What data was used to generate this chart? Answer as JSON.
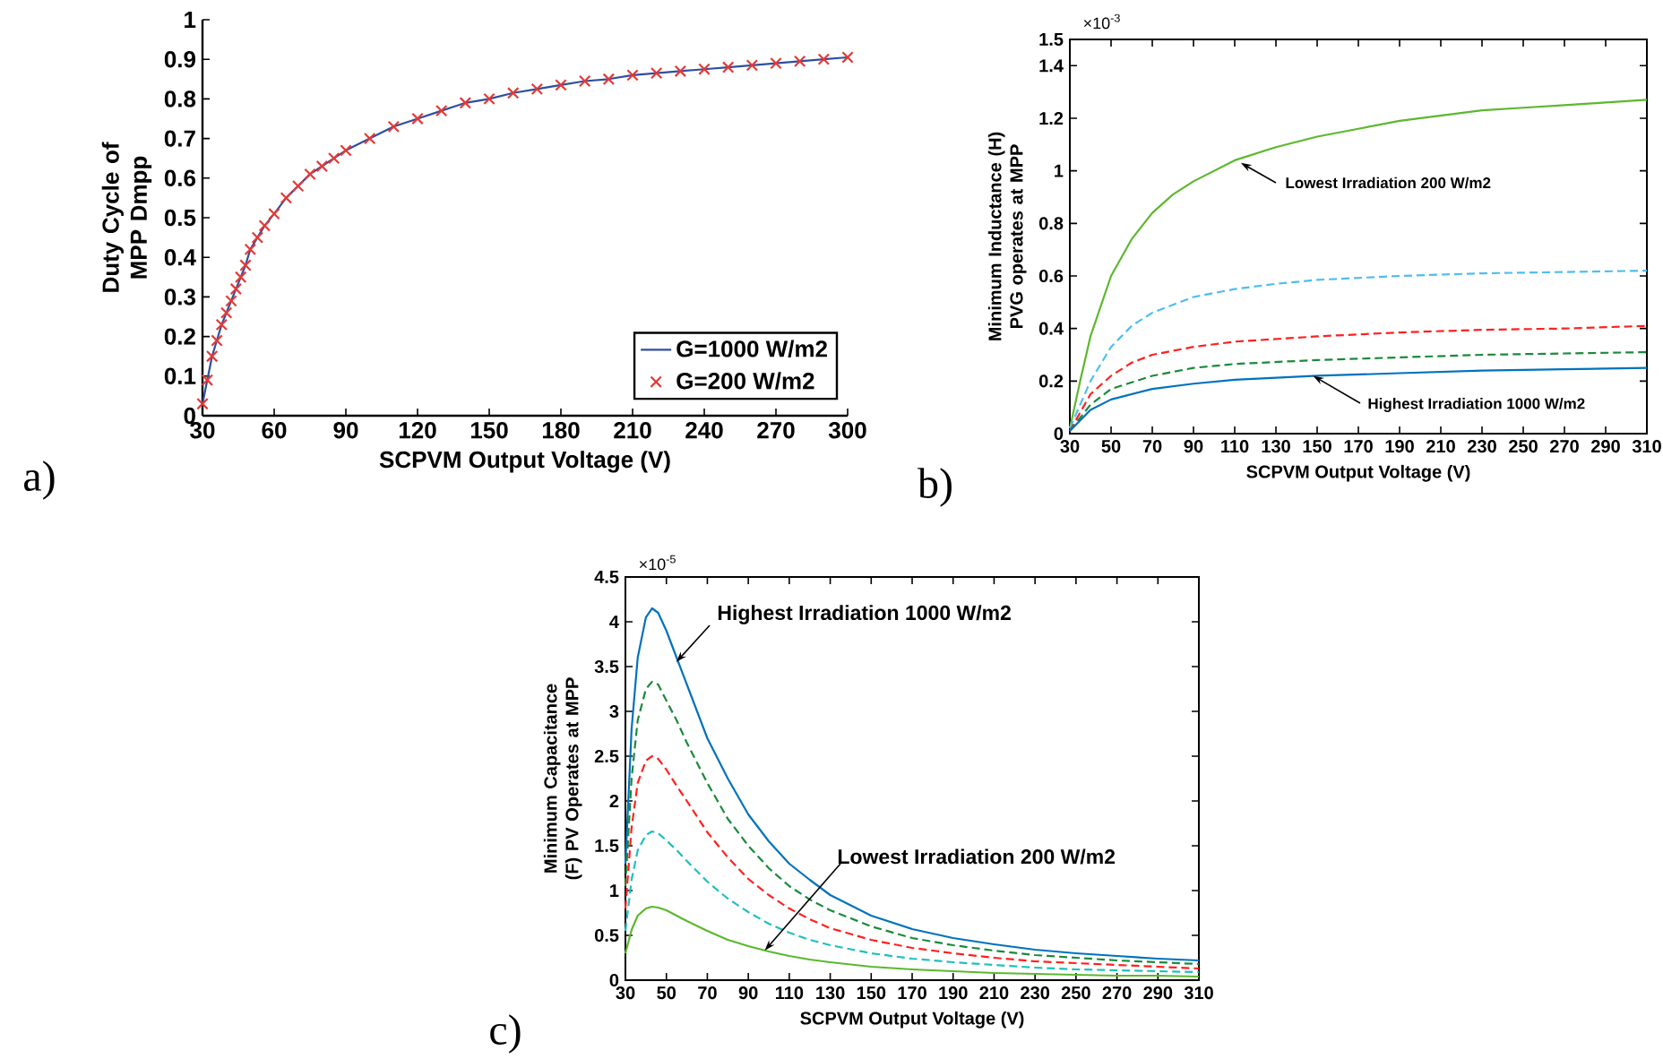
{
  "chart_data": [
    {
      "type": "line",
      "xlabel": "SCPVM Output Voltage (V)",
      "ylabel": "Duty Cycle of MPP Dmpp",
      "x": [
        30,
        32,
        34,
        36,
        38,
        40,
        42,
        44,
        46,
        48,
        50,
        53,
        56,
        60,
        65,
        70,
        75,
        80,
        85,
        90,
        100,
        110,
        120,
        130,
        140,
        150,
        160,
        170,
        180,
        190,
        200,
        210,
        220,
        230,
        240,
        250,
        260,
        270,
        280,
        290,
        300
      ],
      "series": [
        {
          "name": "G=1000 W/m2",
          "color": "#2e4fa0",
          "marker": "none",
          "values": [
            0.03,
            0.09,
            0.15,
            0.19,
            0.23,
            0.26,
            0.29,
            0.32,
            0.35,
            0.38,
            0.42,
            0.45,
            0.48,
            0.51,
            0.55,
            0.58,
            0.61,
            0.63,
            0.65,
            0.67,
            0.7,
            0.73,
            0.75,
            0.77,
            0.79,
            0.8,
            0.815,
            0.825,
            0.835,
            0.845,
            0.85,
            0.86,
            0.865,
            0.87,
            0.875,
            0.88,
            0.885,
            0.89,
            0.895,
            0.9,
            0.905
          ]
        },
        {
          "name": "G=200 W/m2",
          "type": "scatter",
          "color": "#e53935",
          "marker": "cross",
          "values": [
            0.03,
            0.09,
            0.15,
            0.19,
            0.23,
            0.26,
            0.29,
            0.32,
            0.35,
            0.38,
            0.42,
            0.45,
            0.48,
            0.51,
            0.55,
            0.58,
            0.61,
            0.63,
            0.65,
            0.67,
            0.7,
            0.73,
            0.75,
            0.77,
            0.79,
            0.8,
            0.815,
            0.825,
            0.835,
            0.845,
            0.85,
            0.86,
            0.865,
            0.87,
            0.875,
            0.88,
            0.885,
            0.89,
            0.895,
            0.9,
            0.905
          ]
        }
      ],
      "xlim": [
        30,
        300
      ],
      "xticks": [
        30,
        60,
        90,
        120,
        150,
        180,
        210,
        240,
        270,
        300
      ],
      "ylim": [
        0,
        1
      ],
      "yticks": [
        0,
        0.1,
        0.2,
        0.3,
        0.4,
        0.5,
        0.6,
        0.7,
        0.8,
        0.9,
        1
      ],
      "legend": "bottom right",
      "grid": false,
      "annotations": [
        "a)"
      ]
    },
    {
      "type": "line",
      "xlabel": "SCPVM Output Voltage (V)",
      "ylabel": "Minimum Inductance (H) PVG operates at MPP",
      "series": [
        {
          "color": "#5cb82e",
          "line_style": "solid",
          "x": [
            30,
            35,
            40,
            50,
            60,
            70,
            80,
            90,
            100,
            110,
            130,
            150,
            170,
            190,
            210,
            230,
            250,
            270,
            290,
            310
          ],
          "values": [
            0.02,
            0.2,
            0.37,
            0.6,
            0.74,
            0.84,
            0.91,
            0.96,
            1.0,
            1.04,
            1.09,
            1.13,
            1.16,
            1.19,
            1.21,
            1.23,
            1.24,
            1.25,
            1.26,
            1.27
          ]
        },
        {
          "color": "#4dbeee",
          "line_style": "dashed",
          "x": [
            30,
            40,
            50,
            60,
            70,
            90,
            110,
            130,
            150,
            190,
            230,
            270,
            310
          ],
          "values": [
            0.02,
            0.2,
            0.33,
            0.41,
            0.46,
            0.52,
            0.55,
            0.57,
            0.585,
            0.6,
            0.61,
            0.615,
            0.62
          ]
        },
        {
          "color": "#ff2020",
          "line_style": "dashed",
          "x": [
            30,
            40,
            50,
            60,
            70,
            90,
            110,
            150,
            190,
            230,
            270,
            310
          ],
          "values": [
            0.01,
            0.15,
            0.22,
            0.27,
            0.3,
            0.33,
            0.35,
            0.37,
            0.385,
            0.395,
            0.4,
            0.41
          ]
        },
        {
          "color": "#1a8a3a",
          "line_style": "dashed",
          "x": [
            30,
            40,
            50,
            70,
            90,
            110,
            150,
            190,
            230,
            270,
            310
          ],
          "values": [
            0.01,
            0.11,
            0.17,
            0.22,
            0.25,
            0.265,
            0.28,
            0.29,
            0.3,
            0.305,
            0.31
          ]
        },
        {
          "color": "#0072bd",
          "line_style": "solid",
          "x": [
            30,
            40,
            50,
            70,
            90,
            110,
            150,
            190,
            230,
            270,
            310
          ],
          "values": [
            0.01,
            0.09,
            0.13,
            0.17,
            0.19,
            0.205,
            0.22,
            0.23,
            0.24,
            0.245,
            0.25
          ]
        }
      ],
      "xlim": [
        30,
        310
      ],
      "xticks": [
        30,
        50,
        70,
        90,
        110,
        130,
        150,
        170,
        190,
        210,
        230,
        250,
        270,
        290,
        310
      ],
      "ylim": [
        0,
        1.5
      ],
      "yticks": [
        0,
        0.2,
        0.4,
        0.6,
        0.8,
        1,
        1.2,
        1.4,
        1.5
      ],
      "grid": false,
      "annotations": [
        "b)",
        "×10$^{-3}$",
        {
          "text": "Lowest Irradiation 200 W/m2",
          "x": 113,
          "y": 1.03
        },
        {
          "text": "Highest Irradiation 1000 W/m2",
          "x": 148,
          "y": 0.22
        }
      ]
    },
    {
      "type": "line",
      "xlabel": "SCPVM Output Voltage (V)",
      "ylabel": "Minimum Capacitance (F) PV Operates at MPP",
      "x": [
        30,
        33,
        36,
        40,
        43,
        46,
        50,
        55,
        60,
        70,
        80,
        90,
        100,
        110,
        120,
        130,
        150,
        170,
        190,
        210,
        230,
        250,
        270,
        290,
        310
      ],
      "series": [
        {
          "color": "#0072bd",
          "line_style": "solid",
          "values": [
            1.3,
            2.8,
            3.6,
            4.05,
            4.15,
            4.1,
            3.9,
            3.6,
            3.3,
            2.7,
            2.25,
            1.85,
            1.55,
            1.3,
            1.12,
            0.95,
            0.72,
            0.57,
            0.47,
            0.4,
            0.34,
            0.3,
            0.27,
            0.24,
            0.22
          ]
        },
        {
          "color": "#1a8a3a",
          "line_style": "dashed",
          "values": [
            1.05,
            2.25,
            2.9,
            3.25,
            3.33,
            3.3,
            3.12,
            2.9,
            2.65,
            2.2,
            1.8,
            1.5,
            1.25,
            1.05,
            0.9,
            0.78,
            0.6,
            0.47,
            0.39,
            0.33,
            0.28,
            0.25,
            0.22,
            0.2,
            0.18
          ]
        },
        {
          "color": "#ff2020",
          "line_style": "dashed",
          "values": [
            0.8,
            1.7,
            2.2,
            2.45,
            2.5,
            2.47,
            2.35,
            2.17,
            2.0,
            1.65,
            1.37,
            1.13,
            0.95,
            0.8,
            0.68,
            0.58,
            0.45,
            0.36,
            0.3,
            0.25,
            0.21,
            0.19,
            0.17,
            0.15,
            0.13
          ]
        },
        {
          "color": "#1fbfbf",
          "line_style": "dashed",
          "values": [
            0.55,
            1.12,
            1.45,
            1.62,
            1.66,
            1.64,
            1.56,
            1.45,
            1.33,
            1.1,
            0.91,
            0.76,
            0.63,
            0.53,
            0.45,
            0.39,
            0.3,
            0.24,
            0.2,
            0.17,
            0.14,
            0.12,
            0.11,
            0.1,
            0.09
          ]
        },
        {
          "color": "#5cb82e",
          "line_style": "solid",
          "values": [
            0.3,
            0.56,
            0.72,
            0.8,
            0.82,
            0.81,
            0.78,
            0.72,
            0.66,
            0.55,
            0.45,
            0.38,
            0.32,
            0.27,
            0.23,
            0.2,
            0.15,
            0.12,
            0.1,
            0.08,
            0.07,
            0.06,
            0.05,
            0.05,
            0.04
          ]
        }
      ],
      "xlim": [
        30,
        310
      ],
      "xticks": [
        30,
        50,
        70,
        90,
        110,
        130,
        150,
        170,
        190,
        210,
        230,
        250,
        270,
        290,
        310
      ],
      "ylim": [
        0,
        4.5
      ],
      "yticks": [
        0,
        0.5,
        1,
        1.5,
        2,
        2.5,
        3,
        3.5,
        4,
        4.5
      ],
      "grid": false,
      "annotations": [
        "c)",
        "×10$^{-5}$",
        {
          "text": "Highest Irradiation 1000 W/m2",
          "x": 54.8,
          "y": 3.55
        },
        {
          "text": "Lowest Irradiation 200 W/m2",
          "x": 98,
          "y": 0.33
        }
      ]
    }
  ]
}
